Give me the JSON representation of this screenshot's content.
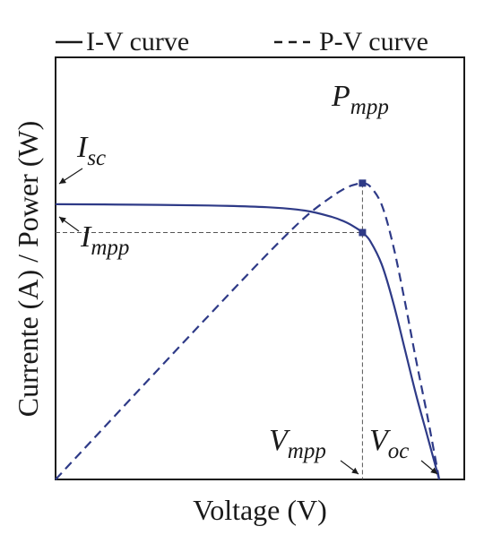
{
  "chart_data": {
    "type": "line",
    "xlabel": "Voltage (V)",
    "ylabel": "Currente (A) / Power (W)",
    "xlim": [
      0,
      1
    ],
    "ylim": [
      0,
      1
    ],
    "grid": false,
    "legend_position": "top",
    "colors": {
      "curve": "#2e3a87",
      "axis": "#1a1a1a",
      "guide": "#555555"
    },
    "series": [
      {
        "name": "I-V curve",
        "line_style": "solid",
        "x": [
          0.0,
          0.2,
          0.4,
          0.55,
          0.65,
          0.72,
          0.76,
          0.79,
          0.8,
          0.82,
          0.85,
          0.88,
          0.91,
          0.94,
          0.97,
          1.0
        ],
        "y": [
          0.652,
          0.651,
          0.649,
          0.645,
          0.637,
          0.622,
          0.608,
          0.592,
          0.585,
          0.565,
          0.51,
          0.42,
          0.31,
          0.2,
          0.1,
          0.0
        ]
      },
      {
        "name": "P-V curve",
        "line_style": "dashed",
        "x": [
          0.0,
          0.2,
          0.4,
          0.55,
          0.65,
          0.72,
          0.76,
          0.79,
          0.8,
          0.82,
          0.85,
          0.88,
          0.91,
          0.94,
          0.97,
          1.0
        ],
        "y": [
          0.0,
          0.195,
          0.389,
          0.532,
          0.621,
          0.67,
          0.692,
          0.701,
          0.702,
          0.694,
          0.651,
          0.555,
          0.424,
          0.282,
          0.146,
          0.0
        ]
      }
    ],
    "points": {
      "mpp_power": {
        "x": 0.8,
        "y": 0.702
      },
      "mpp_current": {
        "x": 0.8,
        "y": 0.585
      },
      "isc": {
        "x": 0.0,
        "y": 0.652
      },
      "voc": {
        "x": 1.0,
        "y": 0.0
      }
    },
    "annotations": {
      "pmpp": {
        "main": "P",
        "sub": "mpp"
      },
      "isc": {
        "main": "I",
        "sub": "sc"
      },
      "impp": {
        "main": "I",
        "sub": "mpp"
      },
      "vmpp": {
        "main": "V",
        "sub": "mpp"
      },
      "voc": {
        "main": "V",
        "sub": "oc"
      }
    }
  }
}
